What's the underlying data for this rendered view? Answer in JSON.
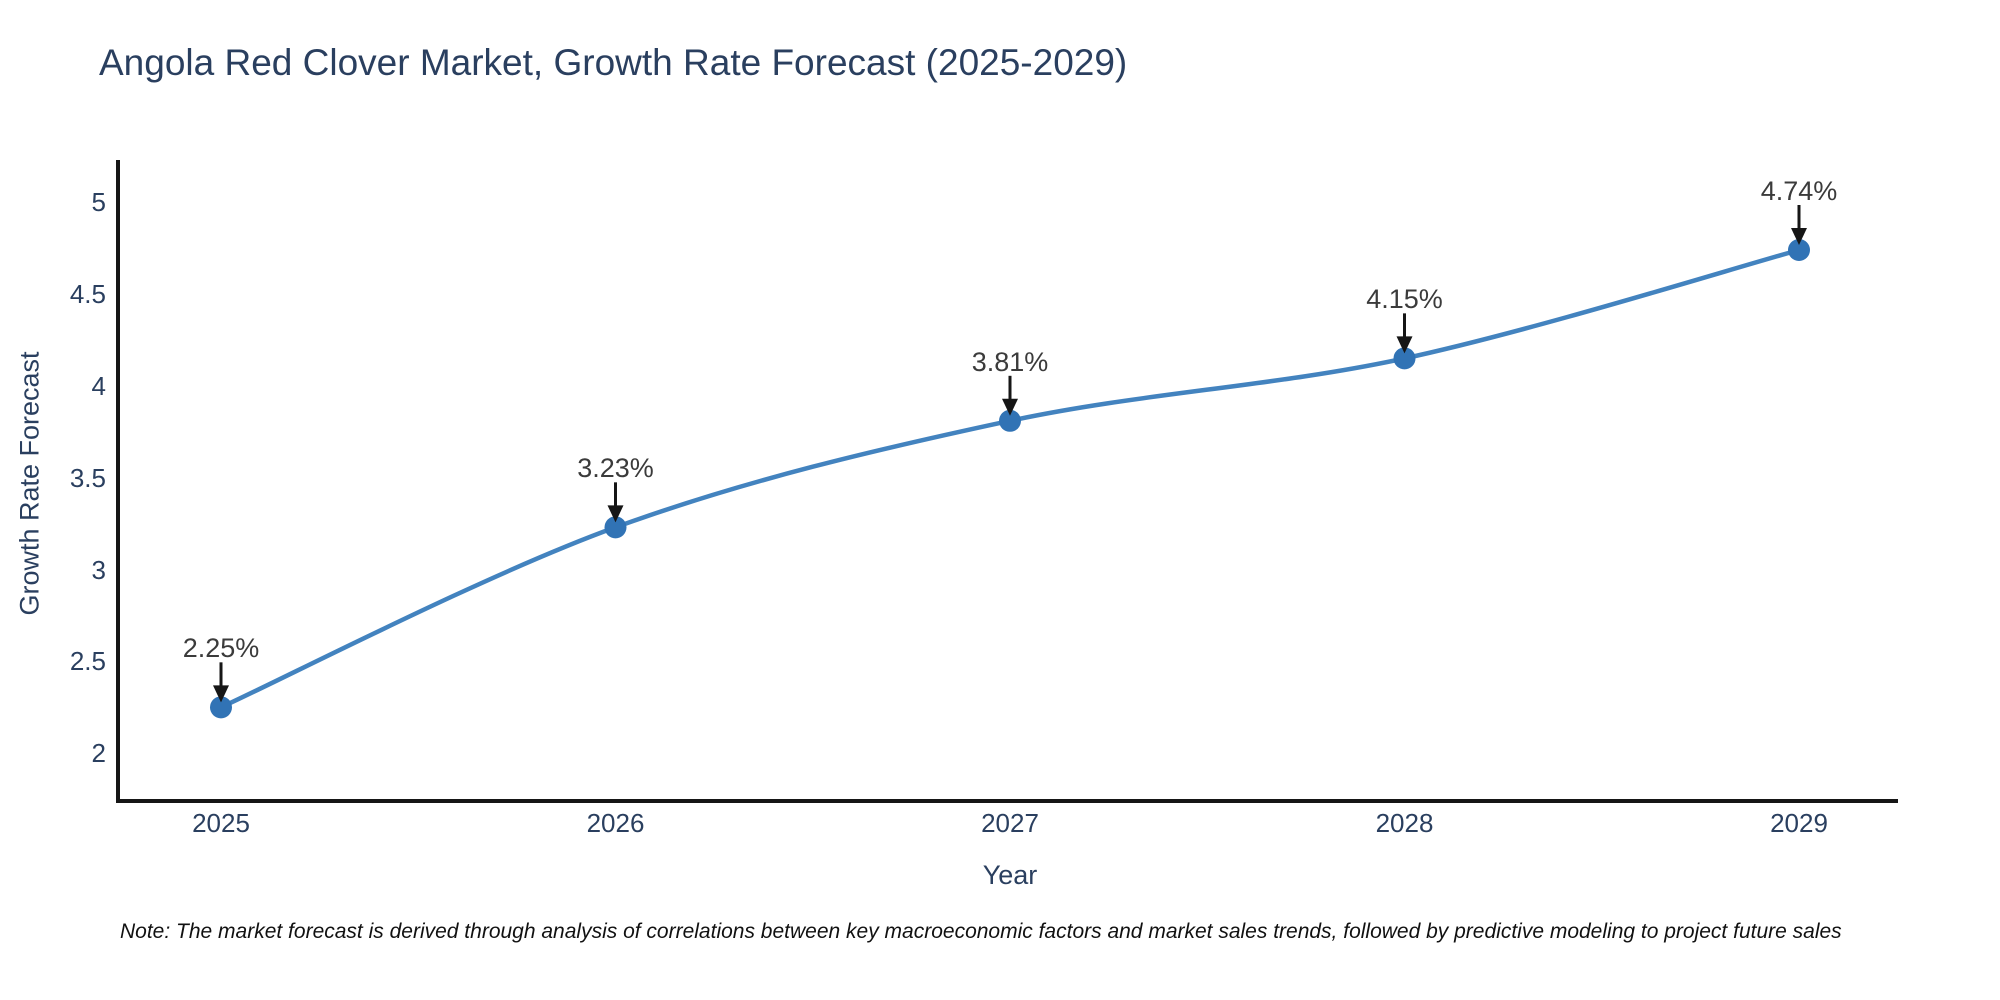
{
  "note": {
    "text": "Note: The market forecast is derived through analysis of correlations between key macroeconomic factors and market sales trends, followed by predictive modeling to project future sales"
  },
  "chart_data": {
    "type": "line",
    "title": "Angola Red Clover Market, Growth Rate Forecast (2025-2029)",
    "xlabel": "Year",
    "ylabel": "Growth Rate Forecast",
    "x": [
      2025,
      2026,
      2027,
      2028,
      2029
    ],
    "series": [
      {
        "name": "Growth Rate Forecast",
        "values": [
          2.25,
          3.23,
          3.81,
          4.15,
          4.74
        ]
      }
    ],
    "point_labels": [
      "2.25%",
      "3.23%",
      "3.81%",
      "4.15%",
      "4.74%"
    ],
    "xtick_labels": [
      "2025",
      "2026",
      "2027",
      "2028",
      "2029"
    ],
    "ytick_values": [
      2,
      2.5,
      3,
      3.5,
      4,
      4.5,
      5
    ],
    "ytick_labels": [
      "2",
      "2.5",
      "3",
      "3.5",
      "4",
      "4.5",
      "5"
    ],
    "ylim": [
      1.74,
      5.23
    ],
    "grid": false,
    "legend": false,
    "annotations_have_arrows": true,
    "line_shape": "spline",
    "colors": {
      "line": "#4383bf",
      "marker": "#3173b5",
      "axis_line": "#161616",
      "tick_text": "#2a3f5f",
      "title_text": "#2a3f5f",
      "annotation_text": "#3b3b3b",
      "arrow": "#161616",
      "background": "#ffffff"
    }
  }
}
